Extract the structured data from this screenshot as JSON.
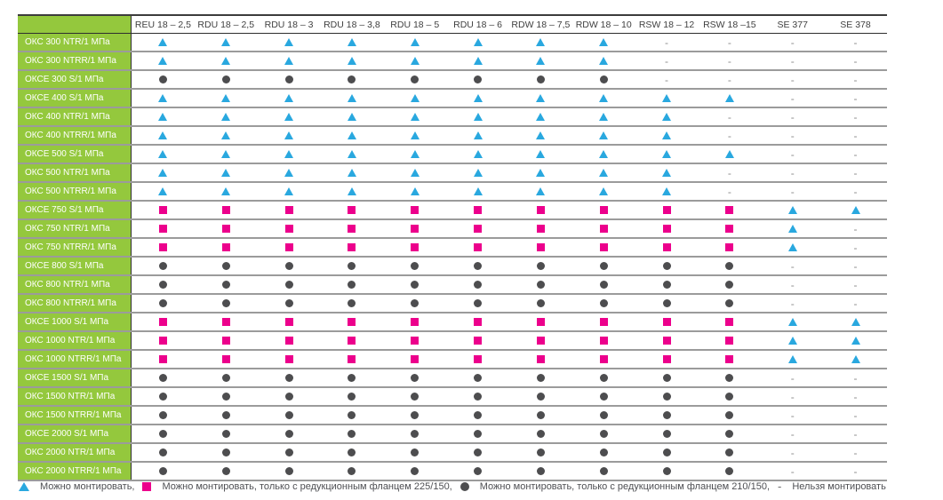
{
  "colors": {
    "row_header_bg": "#94C83D",
    "triangle": "#29A8DF",
    "square": "#EC008C",
    "circle": "#4D4D4F",
    "dash": "#8C8C8C"
  },
  "table": {
    "dash_glyph": "-",
    "columns": [
      "REU 18 – 2,5",
      "RDU 18 – 2,5",
      "RDU 18 – 3",
      "RDU 18 – 3,8",
      "RDU 18 – 5",
      "RDU 18 – 6",
      "RDW 18 – 7,5",
      "RDW 18 – 10",
      "RSW 18 – 12",
      "RSW 18 –15",
      "SE 377",
      "SE 378"
    ],
    "rows": [
      {
        "label": "ОКС 300 NTR/1 МПа",
        "cells": [
          "triangle",
          "triangle",
          "triangle",
          "triangle",
          "triangle",
          "triangle",
          "triangle",
          "triangle",
          "dash",
          "dash",
          "dash",
          "dash"
        ]
      },
      {
        "label": "ОКС 300 NTRR/1 МПа",
        "cells": [
          "triangle",
          "triangle",
          "triangle",
          "triangle",
          "triangle",
          "triangle",
          "triangle",
          "triangle",
          "dash",
          "dash",
          "dash",
          "dash"
        ]
      },
      {
        "label": "ОКСЕ 300 S/1 МПа",
        "cells": [
          "circle",
          "circle",
          "circle",
          "circle",
          "circle",
          "circle",
          "circle",
          "circle",
          "dash",
          "dash",
          "dash",
          "dash"
        ]
      },
      {
        "label": "ОКСЕ 400 S/1 МПа",
        "cells": [
          "triangle",
          "triangle",
          "triangle",
          "triangle",
          "triangle",
          "triangle",
          "triangle",
          "triangle",
          "triangle",
          "triangle",
          "dash",
          "dash"
        ]
      },
      {
        "label": "ОКС 400 NTR/1 МПа",
        "cells": [
          "triangle",
          "triangle",
          "triangle",
          "triangle",
          "triangle",
          "triangle",
          "triangle",
          "triangle",
          "triangle",
          "dash",
          "dash",
          "dash"
        ]
      },
      {
        "label": "ОКС 400 NTRR/1 МПа",
        "cells": [
          "triangle",
          "triangle",
          "triangle",
          "triangle",
          "triangle",
          "triangle",
          "triangle",
          "triangle",
          "triangle",
          "dash",
          "dash",
          "dash"
        ]
      },
      {
        "label": "ОКСЕ 500 S/1 МПа",
        "cells": [
          "triangle",
          "triangle",
          "triangle",
          "triangle",
          "triangle",
          "triangle",
          "triangle",
          "triangle",
          "triangle",
          "triangle",
          "dash",
          "dash"
        ]
      },
      {
        "label": "ОКС 500 NTR/1 МПа",
        "cells": [
          "triangle",
          "triangle",
          "triangle",
          "triangle",
          "triangle",
          "triangle",
          "triangle",
          "triangle",
          "triangle",
          "dash",
          "dash",
          "dash"
        ]
      },
      {
        "label": "ОКС 500 NTRR/1 МПа",
        "cells": [
          "triangle",
          "triangle",
          "triangle",
          "triangle",
          "triangle",
          "triangle",
          "triangle",
          "triangle",
          "triangle",
          "dash",
          "dash",
          "dash"
        ]
      },
      {
        "label": "ОКСЕ 750 S/1 МПа",
        "cells": [
          "square",
          "square",
          "square",
          "square",
          "square",
          "square",
          "square",
          "square",
          "square",
          "square",
          "triangle",
          "triangle"
        ]
      },
      {
        "label": "ОКС 750 NTR/1 МПа",
        "cells": [
          "square",
          "square",
          "square",
          "square",
          "square",
          "square",
          "square",
          "square",
          "square",
          "square",
          "triangle",
          "dash"
        ]
      },
      {
        "label": "ОКС 750 NTRR/1 МПа",
        "cells": [
          "square",
          "square",
          "square",
          "square",
          "square",
          "square",
          "square",
          "square",
          "square",
          "square",
          "triangle",
          "dash"
        ]
      },
      {
        "label": "ОКСЕ 800 S/1 МПа",
        "cells": [
          "circle",
          "circle",
          "circle",
          "circle",
          "circle",
          "circle",
          "circle",
          "circle",
          "circle",
          "circle",
          "dash",
          "dash"
        ]
      },
      {
        "label": "ОКС 800 NTR/1 МПа",
        "cells": [
          "circle",
          "circle",
          "circle",
          "circle",
          "circle",
          "circle",
          "circle",
          "circle",
          "circle",
          "circle",
          "dash",
          "dash"
        ]
      },
      {
        "label": "ОКС 800 NTRR/1 МПа",
        "cells": [
          "circle",
          "circle",
          "circle",
          "circle",
          "circle",
          "circle",
          "circle",
          "circle",
          "circle",
          "circle",
          "dash",
          "dash"
        ]
      },
      {
        "label": "ОКСЕ 1000 S/1 МПа",
        "cells": [
          "square",
          "square",
          "square",
          "square",
          "square",
          "square",
          "square",
          "square",
          "square",
          "square",
          "triangle",
          "triangle"
        ]
      },
      {
        "label": "ОКС 1000 NTR/1 МПа",
        "cells": [
          "square",
          "square",
          "square",
          "square",
          "square",
          "square",
          "square",
          "square",
          "square",
          "square",
          "triangle",
          "triangle"
        ]
      },
      {
        "label": "ОКС 1000 NTRR/1 МПа",
        "cells": [
          "square",
          "square",
          "square",
          "square",
          "square",
          "square",
          "square",
          "square",
          "square",
          "square",
          "triangle",
          "triangle"
        ]
      },
      {
        "label": "ОКСЕ 1500 S/1 МПа",
        "cells": [
          "circle",
          "circle",
          "circle",
          "circle",
          "circle",
          "circle",
          "circle",
          "circle",
          "circle",
          "circle",
          "dash",
          "dash"
        ]
      },
      {
        "label": "ОКС 1500 NTR/1 МПа",
        "cells": [
          "circle",
          "circle",
          "circle",
          "circle",
          "circle",
          "circle",
          "circle",
          "circle",
          "circle",
          "circle",
          "dash",
          "dash"
        ]
      },
      {
        "label": "ОКС 1500 NTRR/1 МПа",
        "cells": [
          "circle",
          "circle",
          "circle",
          "circle",
          "circle",
          "circle",
          "circle",
          "circle",
          "circle",
          "circle",
          "dash",
          "dash"
        ]
      },
      {
        "label": "ОКСЕ 2000 S/1 МПа",
        "cells": [
          "circle",
          "circle",
          "circle",
          "circle",
          "circle",
          "circle",
          "circle",
          "circle",
          "circle",
          "circle",
          "dash",
          "dash"
        ]
      },
      {
        "label": "ОКС 2000 NTR/1 МПа",
        "cells": [
          "circle",
          "circle",
          "circle",
          "circle",
          "circle",
          "circle",
          "circle",
          "circle",
          "circle",
          "circle",
          "dash",
          "dash"
        ]
      },
      {
        "label": "ОКС 2000 NTRR/1 МПа",
        "cells": [
          "circle",
          "circle",
          "circle",
          "circle",
          "circle",
          "circle",
          "circle",
          "circle",
          "circle",
          "circle",
          "dash",
          "dash"
        ]
      }
    ]
  },
  "legend": {
    "items": [
      {
        "symbol": "triangle",
        "label": "Можно монтировать,"
      },
      {
        "symbol": "square",
        "label": "Можно монтировать, только с редукционным фланцем 225/150,"
      },
      {
        "symbol": "circle",
        "label": "Можно монтировать, только с редукционным фланцем 210/150,"
      },
      {
        "symbol": "dash",
        "label": "Нельзя монтировать"
      }
    ]
  }
}
